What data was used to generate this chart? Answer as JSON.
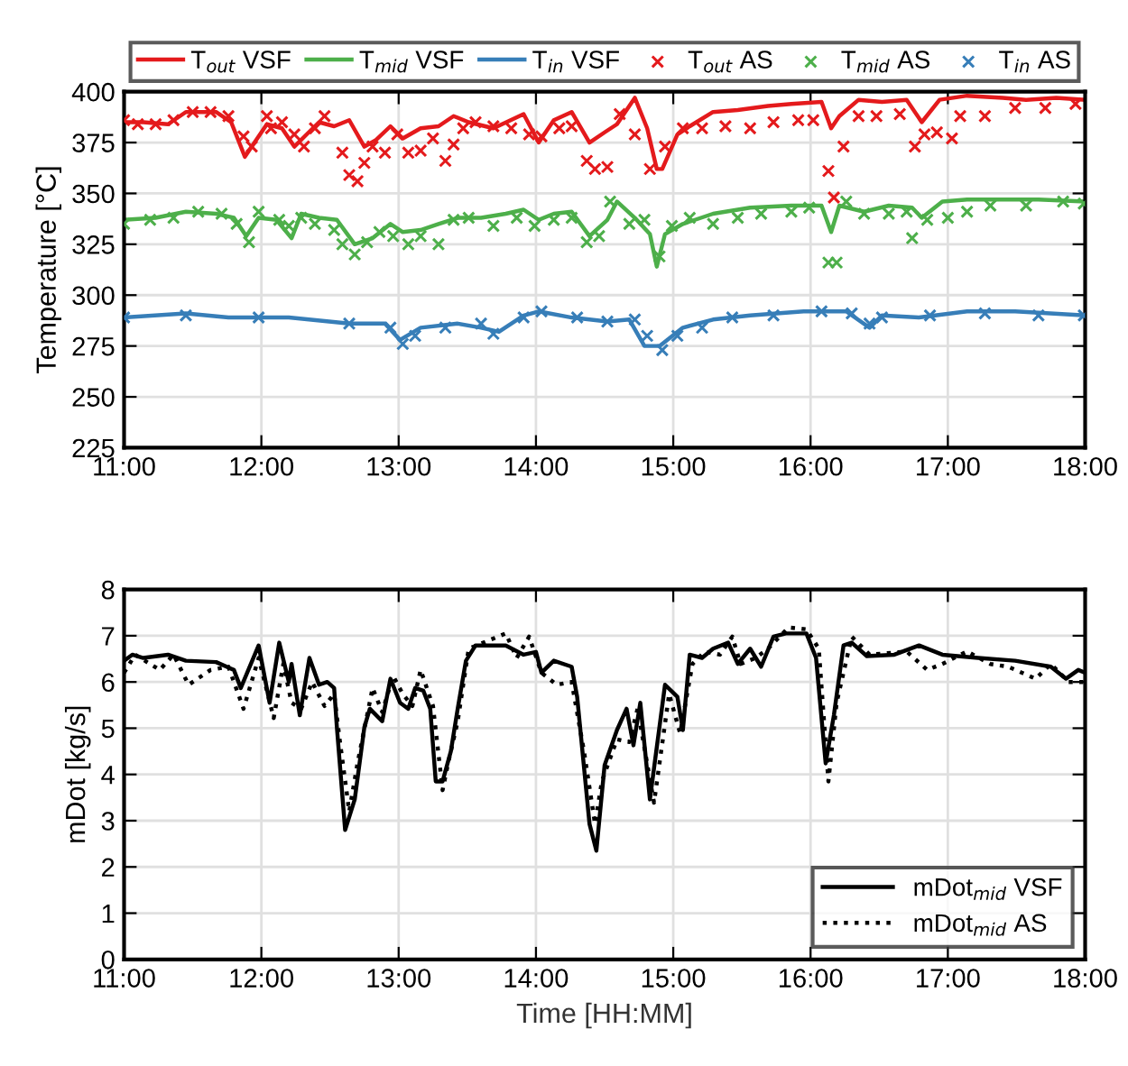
{
  "chart_data": [
    {
      "type": "line",
      "ylabel": "Temperature [°C]",
      "xlim": [
        11,
        18
      ],
      "ylim": [
        225,
        400
      ],
      "xticks": [
        {
          "value": 11,
          "label": "11:00"
        },
        {
          "value": 12,
          "label": "12:00"
        },
        {
          "value": 13,
          "label": "13:00"
        },
        {
          "value": 14,
          "label": "14:00"
        },
        {
          "value": 15,
          "label": "15:00"
        },
        {
          "value": 16,
          "label": "16:00"
        },
        {
          "value": 17,
          "label": "17:00"
        },
        {
          "value": 18,
          "label": "18:00"
        }
      ],
      "yticks": [
        225,
        250,
        275,
        300,
        325,
        350,
        375,
        400
      ],
      "grid": true,
      "legend": "top",
      "series": [
        {
          "name": "T$_{out}$ VSF",
          "type": "line",
          "line_style": "solid",
          "color": "#e41a1c",
          "x": [
            11.0,
            11.14,
            11.32,
            11.45,
            11.67,
            11.78,
            11.88,
            11.96,
            12.04,
            12.15,
            12.24,
            12.33,
            12.42,
            12.53,
            12.64,
            12.75,
            12.83,
            12.94,
            13.03,
            13.16,
            13.29,
            13.4,
            13.51,
            13.69,
            13.91,
            14.02,
            14.13,
            14.26,
            14.39,
            14.5,
            14.59,
            14.72,
            14.81,
            14.88,
            14.92,
            15.03,
            15.12,
            15.29,
            15.47,
            15.69,
            15.86,
            16.08,
            16.15,
            16.21,
            16.35,
            16.52,
            16.7,
            16.81,
            16.94,
            17.14,
            17.4,
            17.57,
            17.79,
            18.0
          ],
          "values": [
            385,
            385,
            384,
            390,
            390,
            385,
            368,
            376,
            384,
            382,
            373,
            379,
            385,
            383,
            386,
            373,
            376,
            383,
            377,
            382,
            383,
            388,
            385,
            382,
            389,
            375,
            386,
            390,
            375,
            380,
            384,
            397,
            382,
            362,
            362,
            379,
            383,
            390,
            391,
            393,
            394,
            395,
            382,
            388,
            396,
            395,
            396,
            385,
            396,
            398,
            397,
            396,
            397,
            396
          ]
        },
        {
          "name": "T$_{mid}$ VSF",
          "type": "line",
          "line_style": "solid",
          "color": "#4daf4a",
          "x": [
            11.0,
            11.23,
            11.45,
            11.67,
            11.8,
            11.89,
            11.98,
            12.11,
            12.22,
            12.29,
            12.42,
            12.55,
            12.68,
            12.81,
            12.94,
            13.03,
            13.16,
            13.29,
            13.43,
            13.6,
            13.78,
            13.91,
            14.02,
            14.13,
            14.26,
            14.39,
            14.52,
            14.59,
            14.72,
            14.83,
            14.88,
            14.94,
            15.07,
            15.29,
            15.56,
            15.86,
            16.08,
            16.15,
            16.21,
            16.39,
            16.57,
            16.74,
            16.81,
            16.96,
            17.14,
            17.4,
            17.66,
            18.0
          ],
          "values": [
            337,
            338,
            341,
            340,
            338,
            329,
            338,
            337,
            328,
            340,
            338,
            337,
            325,
            328,
            335,
            331,
            332,
            335,
            338,
            338,
            340,
            342,
            337,
            340,
            341,
            329,
            337,
            346,
            338,
            330,
            314,
            330,
            335,
            340,
            343,
            344,
            344,
            331,
            344,
            341,
            344,
            343,
            338,
            346,
            347,
            347,
            347,
            346
          ]
        },
        {
          "name": "T$_{in}$ VSF",
          "type": "line",
          "line_style": "solid",
          "color": "#377eb8",
          "x": [
            11.0,
            11.45,
            11.76,
            12.2,
            12.64,
            12.9,
            13.01,
            13.16,
            13.43,
            13.6,
            13.73,
            13.91,
            14.02,
            14.26,
            14.52,
            14.68,
            14.79,
            14.9,
            15.07,
            15.29,
            15.56,
            15.95,
            16.26,
            16.43,
            16.52,
            16.79,
            17.14,
            17.49,
            18.0
          ],
          "values": [
            289,
            291,
            289,
            289,
            286,
            286,
            278,
            284,
            286,
            284,
            282,
            290,
            292,
            289,
            287,
            288,
            275,
            275,
            284,
            288,
            290,
            292,
            292,
            284,
            290,
            289,
            292,
            292,
            290
          ]
        },
        {
          "name": "T$_{out}$ AS",
          "type": "scatter",
          "marker": "cross",
          "color": "#e41a1c",
          "x": [
            11.0,
            11.1,
            11.23,
            11.36,
            11.5,
            11.63,
            11.76,
            11.87,
            11.93,
            12.04,
            12.07,
            12.15,
            12.24,
            12.31,
            12.39,
            12.46,
            12.59,
            12.64,
            12.7,
            12.75,
            12.81,
            12.9,
            12.99,
            13.07,
            13.16,
            13.25,
            13.34,
            13.4,
            13.47,
            13.56,
            13.69,
            13.82,
            13.95,
            14.04,
            14.17,
            14.26,
            14.37,
            14.43,
            14.52,
            14.61,
            14.72,
            14.83,
            14.94,
            15.07,
            15.21,
            15.38,
            15.56,
            15.73,
            15.91,
            16.02,
            16.13,
            16.17,
            16.24,
            16.35,
            16.48,
            16.65,
            16.76,
            16.83,
            16.92,
            17.03,
            17.09,
            17.27,
            17.49,
            17.71,
            17.93
          ],
          "values": [
            386,
            384,
            384,
            386,
            390,
            390,
            388,
            378,
            373,
            388,
            382,
            385,
            379,
            373,
            382,
            388,
            370,
            359,
            356,
            365,
            373,
            370,
            379,
            370,
            371,
            377,
            366,
            374,
            382,
            385,
            383,
            382,
            379,
            378,
            382,
            383,
            366,
            362,
            363,
            389,
            379,
            362,
            373,
            382,
            382,
            383,
            382,
            385,
            386,
            386,
            361,
            348,
            373,
            388,
            388,
            389,
            373,
            379,
            380,
            377,
            388,
            388,
            392,
            392,
            394
          ]
        },
        {
          "name": "T$_{mid}$ AS",
          "type": "scatter",
          "marker": "cross",
          "color": "#4daf4a",
          "x": [
            11.0,
            11.19,
            11.36,
            11.54,
            11.71,
            11.82,
            11.91,
            11.98,
            12.13,
            12.2,
            12.29,
            12.39,
            12.53,
            12.59,
            12.68,
            12.77,
            12.86,
            12.96,
            13.07,
            13.16,
            13.29,
            13.4,
            13.51,
            13.69,
            13.86,
            13.99,
            14.13,
            14.26,
            14.37,
            14.46,
            14.54,
            14.68,
            14.79,
            14.9,
            14.99,
            15.12,
            15.29,
            15.47,
            15.64,
            15.86,
            15.99,
            16.13,
            16.19,
            16.26,
            16.39,
            16.57,
            16.7,
            16.74,
            16.85,
            17.0,
            17.14,
            17.31,
            17.57,
            17.84,
            17.99
          ],
          "values": [
            335,
            337,
            338,
            341,
            340,
            335,
            326,
            341,
            337,
            334,
            338,
            335,
            332,
            325,
            320,
            326,
            331,
            329,
            325,
            329,
            325,
            337,
            338,
            334,
            338,
            334,
            337,
            338,
            326,
            329,
            346,
            335,
            337,
            319,
            334,
            338,
            335,
            338,
            340,
            341,
            343,
            316,
            316,
            346,
            340,
            340,
            341,
            328,
            337,
            338,
            341,
            344,
            344,
            346,
            345
          ]
        },
        {
          "name": "T$_{in}$ AS",
          "type": "scatter",
          "marker": "cross",
          "color": "#377eb8",
          "x": [
            11.0,
            11.45,
            11.98,
            12.64,
            12.94,
            13.03,
            13.12,
            13.34,
            13.6,
            13.69,
            13.91,
            14.04,
            14.3,
            14.52,
            14.72,
            14.81,
            14.92,
            15.03,
            15.21,
            15.43,
            15.73,
            16.08,
            16.3,
            16.43,
            16.52,
            16.87,
            17.27,
            17.66,
            17.99
          ],
          "values": [
            289,
            290,
            289,
            286,
            284,
            276,
            280,
            284,
            286,
            281,
            289,
            292,
            289,
            287,
            288,
            280,
            273,
            280,
            284,
            289,
            290,
            292,
            291,
            286,
            289,
            290,
            291,
            290,
            290
          ]
        }
      ]
    },
    {
      "type": "line",
      "xlabel": "Time [HH:MM]",
      "ylabel": "mDot [kg/s]",
      "xlim": [
        11,
        18
      ],
      "ylim": [
        0,
        8
      ],
      "xticks": [
        {
          "value": 11,
          "label": "11:00"
        },
        {
          "value": 12,
          "label": "12:00"
        },
        {
          "value": 13,
          "label": "13:00"
        },
        {
          "value": 14,
          "label": "14:00"
        },
        {
          "value": 15,
          "label": "15:00"
        },
        {
          "value": 16,
          "label": "16:00"
        },
        {
          "value": 17,
          "label": "17:00"
        },
        {
          "value": 18,
          "label": "18:00"
        }
      ],
      "yticks": [
        0,
        1,
        2,
        3,
        4,
        5,
        6,
        7,
        8
      ],
      "grid": true,
      "legend": "bottom right",
      "series": [
        {
          "name": "mDot$_{mid}$ VSF",
          "type": "line",
          "line_style": "solid",
          "color": "#000000",
          "x": [
            11.0,
            11.06,
            11.14,
            11.32,
            11.45,
            11.67,
            11.8,
            11.85,
            11.98,
            12.06,
            12.13,
            12.2,
            12.22,
            12.28,
            12.35,
            12.42,
            12.48,
            12.53,
            12.55,
            12.61,
            12.68,
            12.75,
            12.79,
            12.88,
            12.94,
            13.01,
            13.07,
            13.12,
            13.18,
            13.23,
            13.27,
            13.32,
            13.38,
            13.43,
            13.49,
            13.56,
            13.78,
            13.91,
            14.0,
            14.04,
            14.13,
            14.26,
            14.3,
            14.39,
            14.44,
            14.5,
            14.59,
            14.66,
            14.71,
            14.76,
            14.83,
            14.94,
            15.03,
            15.07,
            15.12,
            15.21,
            15.29,
            15.4,
            15.47,
            15.56,
            15.64,
            15.73,
            15.82,
            15.97,
            16.04,
            16.11,
            16.17,
            16.24,
            16.3,
            16.41,
            16.61,
            16.79,
            16.96,
            17.22,
            17.49,
            17.75,
            17.86,
            17.95,
            18.0
          ],
          "values": [
            6.46,
            6.59,
            6.52,
            6.59,
            6.46,
            6.43,
            6.26,
            5.87,
            6.79,
            5.55,
            6.85,
            6.0,
            6.39,
            5.28,
            6.52,
            5.94,
            6.0,
            5.87,
            5.02,
            2.8,
            3.46,
            5.02,
            5.42,
            5.15,
            6.07,
            5.55,
            5.42,
            5.87,
            5.81,
            5.42,
            3.85,
            3.85,
            4.5,
            5.42,
            6.46,
            6.79,
            6.79,
            6.59,
            6.65,
            6.2,
            6.46,
            6.33,
            5.68,
            2.93,
            2.35,
            4.2,
            4.96,
            5.42,
            4.63,
            5.55,
            3.46,
            5.94,
            5.68,
            4.96,
            6.59,
            6.52,
            6.72,
            6.85,
            6.39,
            6.72,
            6.33,
            6.98,
            7.05,
            7.05,
            6.52,
            4.24,
            5.28,
            6.79,
            6.85,
            6.56,
            6.59,
            6.79,
            6.59,
            6.52,
            6.46,
            6.33,
            6.07,
            6.26,
            6.2
          ]
        },
        {
          "name": "mDot$_{mid}$ AS",
          "type": "line",
          "line_style": "dotted",
          "color": "#000000",
          "x": [
            11.0,
            11.08,
            11.26,
            11.36,
            11.47,
            11.63,
            11.76,
            11.87,
            11.98,
            12.09,
            12.16,
            12.22,
            12.29,
            12.37,
            12.46,
            12.53,
            12.57,
            12.64,
            12.7,
            12.81,
            12.88,
            12.96,
            13.03,
            13.1,
            13.16,
            13.25,
            13.32,
            13.36,
            13.43,
            13.51,
            13.78,
            13.86,
            13.95,
            14.04,
            14.15,
            14.26,
            14.35,
            14.43,
            14.48,
            14.59,
            14.68,
            14.74,
            14.86,
            14.97,
            15.05,
            15.14,
            15.23,
            15.34,
            15.43,
            15.49,
            15.6,
            15.69,
            15.84,
            15.97,
            16.06,
            16.13,
            16.19,
            16.3,
            16.43,
            16.7,
            16.85,
            16.96,
            17.14,
            17.31,
            17.44,
            17.64,
            17.75,
            17.88,
            18.0
          ],
          "values": [
            6.2,
            6.59,
            6.26,
            6.59,
            5.94,
            6.26,
            6.33,
            5.42,
            6.52,
            5.22,
            6.39,
            5.55,
            5.42,
            6.0,
            5.48,
            5.74,
            4.76,
            3.2,
            4.24,
            5.87,
            5.35,
            6.13,
            5.74,
            5.48,
            6.26,
            5.48,
            3.66,
            4.24,
            5.15,
            6.72,
            7.05,
            6.52,
            6.98,
            6.2,
            5.94,
            6.0,
            4.5,
            2.93,
            3.85,
            4.76,
            4.7,
            5.42,
            3.39,
            5.74,
            4.89,
            6.39,
            6.66,
            6.59,
            6.98,
            6.39,
            6.52,
            6.72,
            7.18,
            7.14,
            6.72,
            3.85,
            5.55,
            6.98,
            6.59,
            6.66,
            6.26,
            6.39,
            6.66,
            6.39,
            6.33,
            6.07,
            6.39,
            6.0,
            6.0
          ]
        }
      ]
    }
  ]
}
